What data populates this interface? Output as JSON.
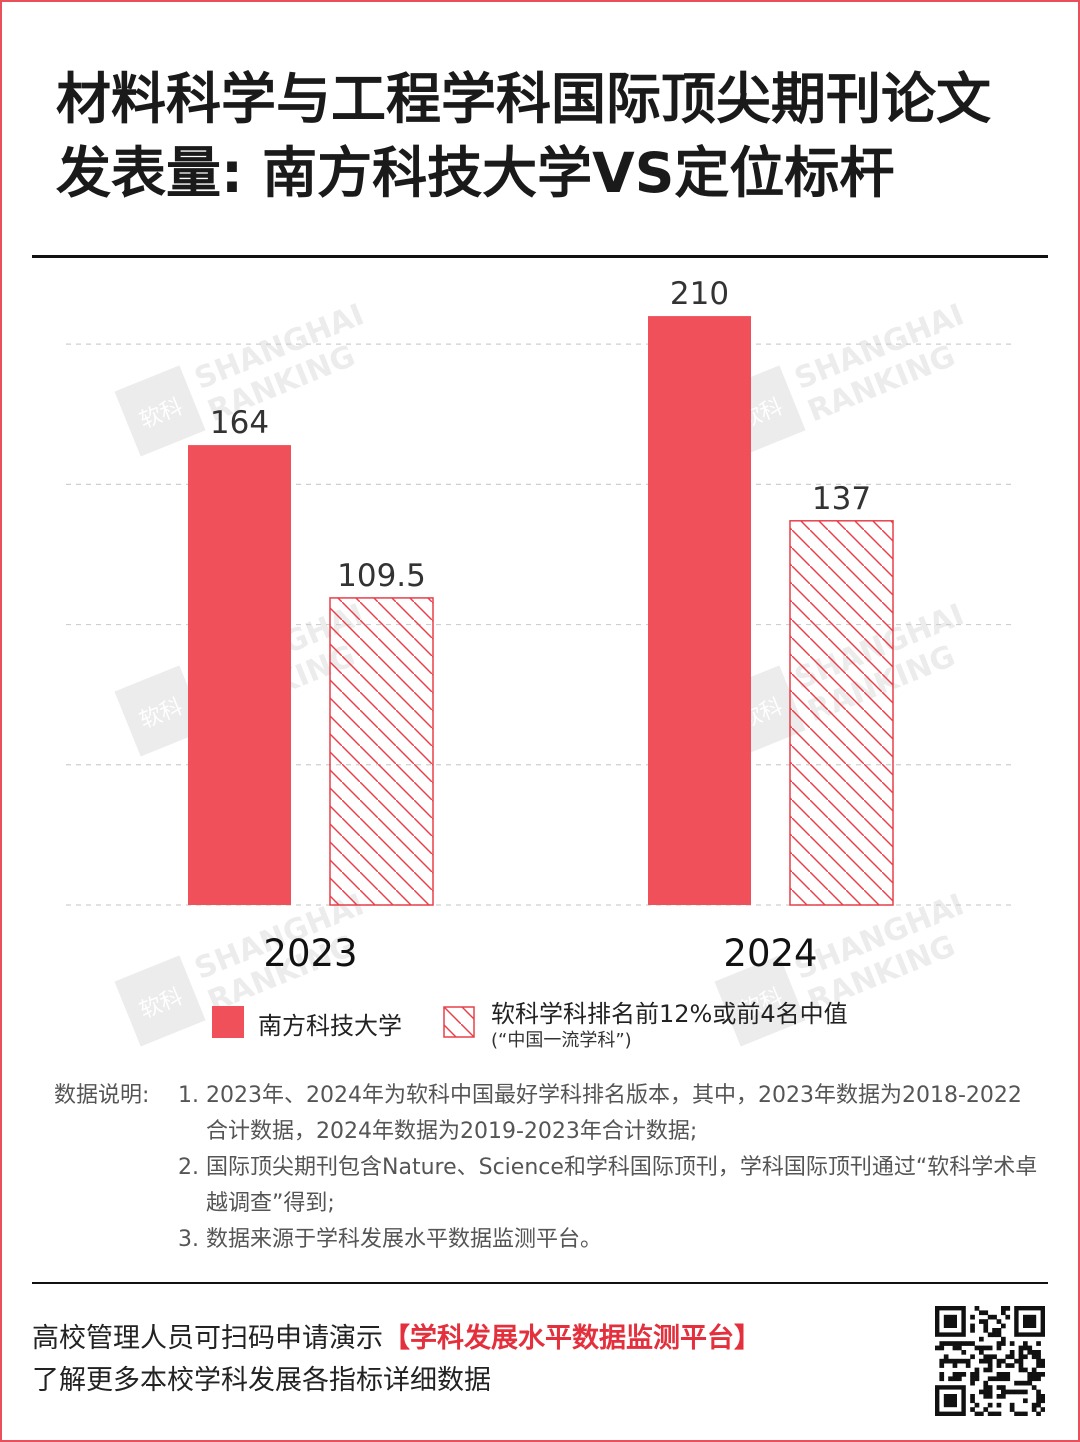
{
  "title_line1": "材料科学与工程学科国际顶尖期刊论文",
  "title_line2": "发表量: 南方科技大学VS定位标杆",
  "watermark": {
    "logo": "软科",
    "line1": "SHANGHAI",
    "line2": "RANKING"
  },
  "chart_data": {
    "type": "bar",
    "categories": [
      "2023",
      "2024"
    ],
    "series": [
      {
        "name": "南方科技大学",
        "values": [
          164,
          210
        ],
        "color": "#f0505a",
        "pattern": "solid"
      },
      {
        "name": "软科学科排名前12%或前4名中值",
        "values": [
          109.5,
          137
        ],
        "color": "#e8404a",
        "pattern": "hatch"
      }
    ],
    "ylim": [
      0,
      230
    ],
    "grid": true,
    "legend_position": "bottom"
  },
  "legend": {
    "item1": "南方科技大学",
    "item2": "软科学科排名前12%或前4名中值",
    "item2_sub": "(“中国一流学科”)"
  },
  "notes": {
    "label": "数据说明:",
    "items": [
      {
        "num": "1.",
        "text": "2023年、2024年为软科中国最好学科排名版本，其中，2023年数据为2018-2022合计数据，2024年数据为2019-2023年合计数据;"
      },
      {
        "num": "2.",
        "text": "国际顶尖期刊包含Nature、Science和学科国际顶刊，学科国际顶刊通过“软科学术卓越调查”得到;"
      },
      {
        "num": "3.",
        "text": "数据来源于学科发展水平数据监测平台。"
      }
    ]
  },
  "footer": {
    "line1_prefix": "高校管理人员可扫码申请演示",
    "line1_highlight": "【学科发展水平数据监测平台】",
    "line2": "了解更多本校学科发展各指标详细数据"
  },
  "qr_icon": "qr-code-icon"
}
